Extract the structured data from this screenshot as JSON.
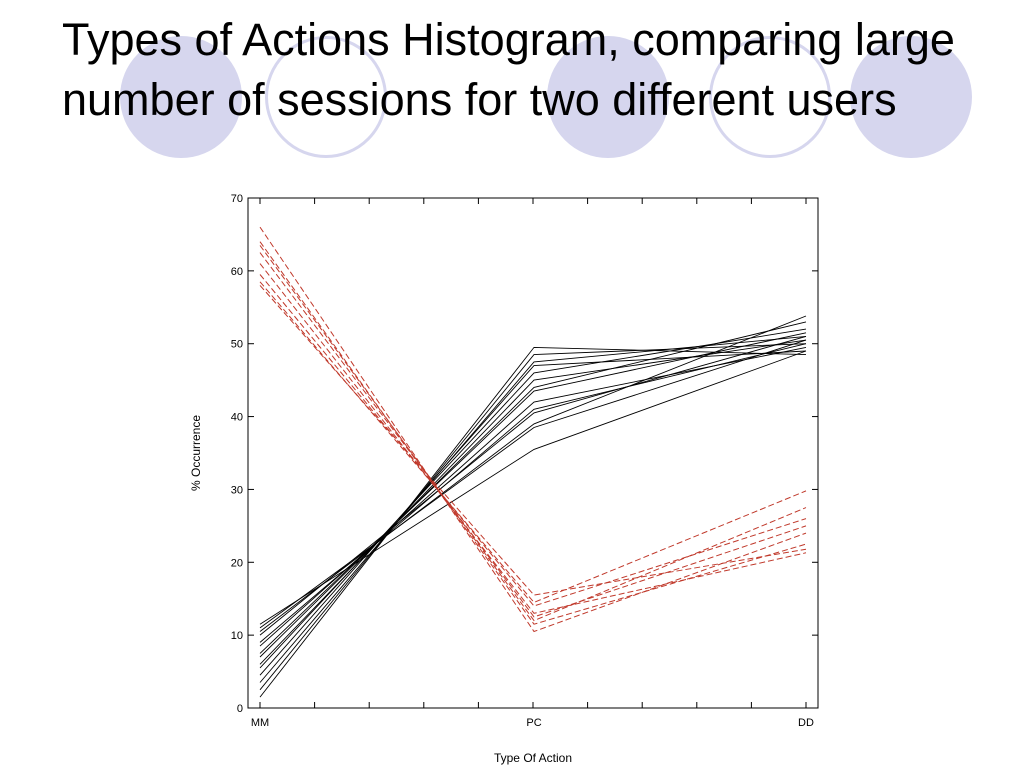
{
  "slide": {
    "title": "Types of Actions Histogram, comparing large number of sessions for two different users"
  },
  "colors": {
    "decoration": "#d6d6ee",
    "user1_line": "#000000",
    "user2_line": "#c0392b"
  },
  "chart_data": {
    "type": "line",
    "title": "",
    "xlabel": "Type Of Action",
    "ylabel": "% Occurrence",
    "categories": [
      "MM",
      "PC",
      "DD"
    ],
    "ylim": [
      0,
      70
    ],
    "yticks": [
      0,
      10,
      20,
      30,
      40,
      50,
      60,
      70
    ],
    "grid": false,
    "legend": "none",
    "series": [
      {
        "style": "solid",
        "color": "#000000",
        "values": [
          1.5,
          49.5,
          48.5
        ]
      },
      {
        "style": "solid",
        "color": "#000000",
        "values": [
          2.5,
          48.5,
          50
        ]
      },
      {
        "style": "solid",
        "color": "#000000",
        "values": [
          3.5,
          47.5,
          51
        ]
      },
      {
        "style": "solid",
        "color": "#000000",
        "values": [
          4.5,
          47,
          49
        ]
      },
      {
        "style": "solid",
        "color": "#000000",
        "values": [
          5.5,
          46,
          52
        ]
      },
      {
        "style": "solid",
        "color": "#000000",
        "values": [
          6,
          45,
          50.5
        ]
      },
      {
        "style": "solid",
        "color": "#000000",
        "values": [
          7,
          44,
          53
        ]
      },
      {
        "style": "solid",
        "color": "#000000",
        "values": [
          7.5,
          43.5,
          51.5
        ]
      },
      {
        "style": "solid",
        "color": "#000000",
        "values": [
          8.5,
          42,
          49.5
        ]
      },
      {
        "style": "solid",
        "color": "#000000",
        "values": [
          9,
          41,
          50
        ]
      },
      {
        "style": "solid",
        "color": "#000000",
        "values": [
          10,
          40.5,
          51
        ]
      },
      {
        "style": "solid",
        "color": "#000000",
        "values": [
          10.5,
          39,
          53.8
        ]
      },
      {
        "style": "solid",
        "color": "#000000",
        "values": [
          11,
          38.5,
          50.5
        ]
      },
      {
        "style": "solid",
        "color": "#000000",
        "values": [
          11.5,
          35.5,
          49
        ]
      },
      {
        "style": "dashed",
        "color": "#c0392b",
        "values": [
          66,
          10.5,
          24
        ]
      },
      {
        "style": "dashed",
        "color": "#c0392b",
        "values": [
          64,
          11.5,
          22.5
        ]
      },
      {
        "style": "dashed",
        "color": "#c0392b",
        "values": [
          63.5,
          12,
          27.5
        ]
      },
      {
        "style": "dashed",
        "color": "#c0392b",
        "values": [
          62.5,
          12.5,
          25
        ]
      },
      {
        "style": "dashed",
        "color": "#c0392b",
        "values": [
          61,
          13,
          21.3
        ]
      },
      {
        "style": "dashed",
        "color": "#c0392b",
        "values": [
          59.5,
          14,
          26
        ]
      },
      {
        "style": "dashed",
        "color": "#c0392b",
        "values": [
          58.5,
          14.5,
          29.8
        ]
      },
      {
        "style": "dashed",
        "color": "#c0392b",
        "values": [
          58,
          15.5,
          21.8
        ]
      }
    ]
  }
}
